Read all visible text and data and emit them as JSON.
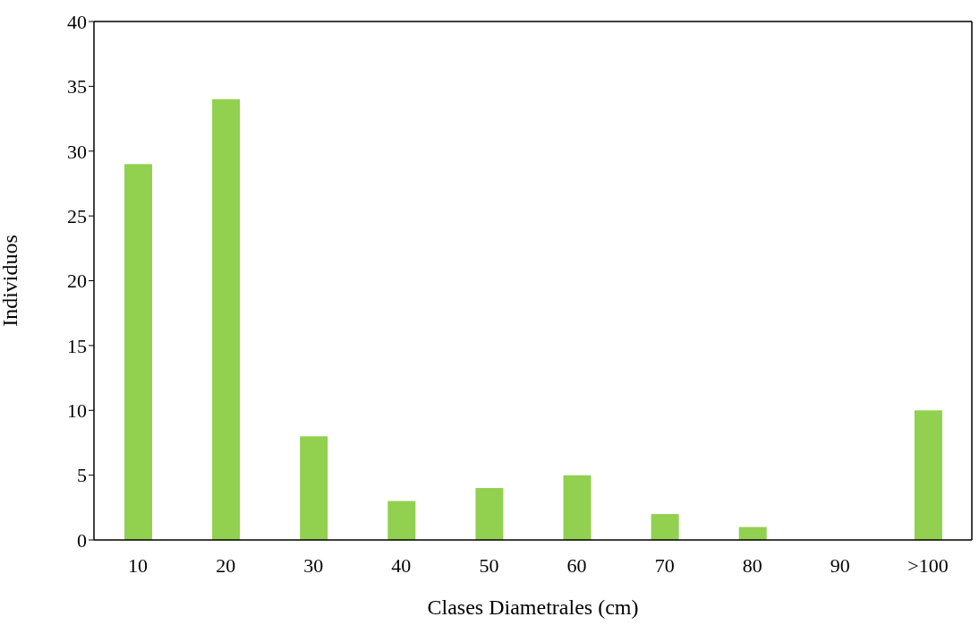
{
  "chart_data": {
    "type": "bar",
    "xlabel": "Clases Diametrales (cm)",
    "ylabel": "Individuos",
    "categories": [
      "10",
      "20",
      "30",
      "40",
      "50",
      "60",
      "70",
      "80",
      "90",
      ">100"
    ],
    "values": [
      29,
      34,
      8,
      3,
      4,
      5,
      2,
      1,
      0,
      10
    ],
    "color": "#92d050",
    "ylim": [
      0,
      40
    ],
    "yticks": [
      0,
      5,
      10,
      15,
      20,
      25,
      30,
      35,
      40
    ],
    "grid": false,
    "legend": false
  }
}
